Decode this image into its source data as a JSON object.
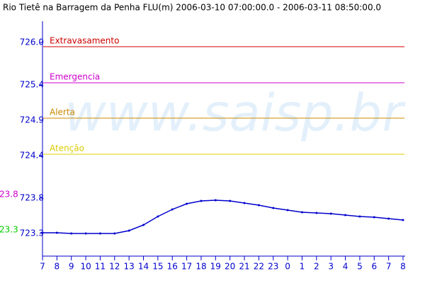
{
  "chart_data": {
    "type": "line",
    "title": "Rio Tietê na Barragem da Penha FLU(m) 2006-03-10 07:00:00.0 - 2006-03-11 08:50:00.0",
    "watermark": "www.saisp.br",
    "xlim": [
      0,
      25
    ],
    "ylim": [
      723.0,
      726.3
    ],
    "xticks": [
      {
        "value": 0,
        "label": "7"
      },
      {
        "value": 1,
        "label": "8"
      },
      {
        "value": 2,
        "label": "9"
      },
      {
        "value": 3,
        "label": "10"
      },
      {
        "value": 4,
        "label": "11"
      },
      {
        "value": 5,
        "label": "12"
      },
      {
        "value": 6,
        "label": "13"
      },
      {
        "value": 7,
        "label": "14"
      },
      {
        "value": 8,
        "label": "15"
      },
      {
        "value": 9,
        "label": "16"
      },
      {
        "value": 10,
        "label": "17"
      },
      {
        "value": 11,
        "label": "18"
      },
      {
        "value": 12,
        "label": "19"
      },
      {
        "value": 13,
        "label": "20"
      },
      {
        "value": 14,
        "label": "21"
      },
      {
        "value": 15,
        "label": "22"
      },
      {
        "value": 16,
        "label": "23"
      },
      {
        "value": 17,
        "label": "0"
      },
      {
        "value": 18,
        "label": "1"
      },
      {
        "value": 19,
        "label": "2"
      },
      {
        "value": 20,
        "label": "3"
      },
      {
        "value": 21,
        "label": "4"
      },
      {
        "value": 22,
        "label": "5"
      },
      {
        "value": 23,
        "label": "6"
      },
      {
        "value": 24,
        "label": "7"
      },
      {
        "value": 25,
        "label": "8"
      }
    ],
    "yticks": [
      {
        "value": 726.0,
        "label": "726.0"
      },
      725.4,
      724.9,
      724.4,
      723.8,
      723.3
    ],
    "tick_color": "#0000cc",
    "thresholds": [
      {
        "name": "Extravasamento",
        "value": 725.94,
        "color": "#cc0000"
      },
      {
        "name": "Emergencia",
        "value": 725.43,
        "color": "#cc00cc"
      },
      {
        "name": "Alerta",
        "value": 724.93,
        "color": "#cc8800"
      },
      {
        "name": "Atenção",
        "value": 724.42,
        "color": "#ddcc00"
      }
    ],
    "side_labels": [
      {
        "text": "23.8",
        "color": "#cc00cc"
      },
      {
        "text": "23.3",
        "color": "#00cc00"
      }
    ],
    "x": [
      0,
      1,
      2,
      3,
      4,
      5,
      6,
      7,
      8,
      9,
      10,
      11,
      12,
      13,
      14,
      15,
      16,
      17,
      18,
      19,
      20,
      21,
      22,
      23,
      24,
      25
    ],
    "series": [
      {
        "name": "FLU",
        "color": "#0000cc",
        "values": [
          723.31,
          723.31,
          723.3,
          723.3,
          723.3,
          723.3,
          723.34,
          723.42,
          723.54,
          723.64,
          723.72,
          723.76,
          723.77,
          723.76,
          723.73,
          723.7,
          723.66,
          723.63,
          723.6,
          723.59,
          723.58,
          723.56,
          723.54,
          723.53,
          723.51,
          723.49
        ]
      }
    ]
  }
}
